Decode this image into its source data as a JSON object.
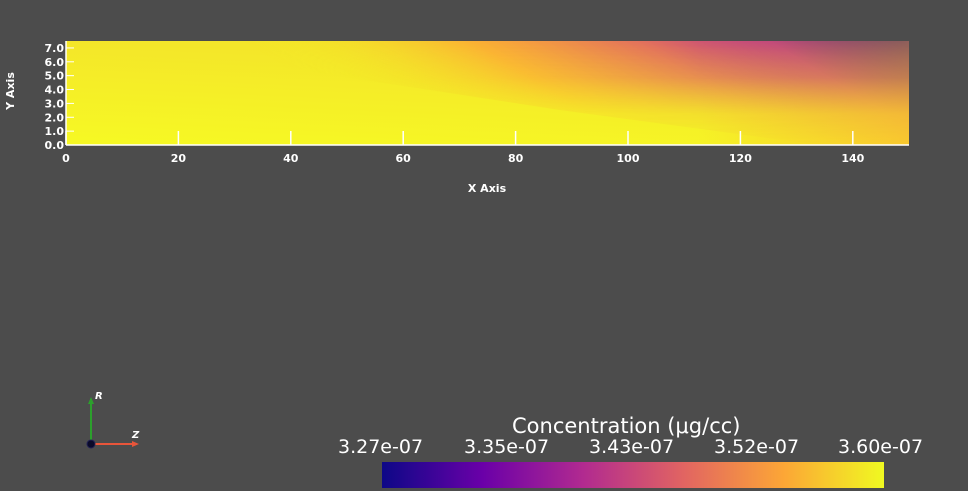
{
  "plot": {
    "x_axis_title": "X Axis",
    "y_axis_title": "Y Axis",
    "x_ticks": [
      "0",
      "20",
      "40",
      "60",
      "80",
      "100",
      "120",
      "140"
    ],
    "y_ticks": [
      "0.0",
      "1.0",
      "2.0",
      "3.0",
      "4.0",
      "5.0",
      "6.0",
      "7.0"
    ],
    "x_range": [
      0,
      150
    ],
    "y_range": [
      0,
      7.5
    ],
    "colormap": "plasma",
    "colormap_stops": [
      "#0d0887",
      "#6a00a8",
      "#b12a90",
      "#e16462",
      "#fca636",
      "#f0f921"
    ]
  },
  "colorbar": {
    "title": "Concentration (μg/cc)",
    "labels": [
      "3.27e-07",
      "3.35e-07",
      "3.43e-07",
      "3.52e-07",
      "3.60e-07"
    ],
    "range": [
      3.27e-07,
      3.6e-07
    ]
  },
  "orientation": {
    "vertical_label": "R",
    "horizontal_label": "Z",
    "vertical_color": "#2ca02c",
    "horizontal_color": "#e8553a"
  }
}
